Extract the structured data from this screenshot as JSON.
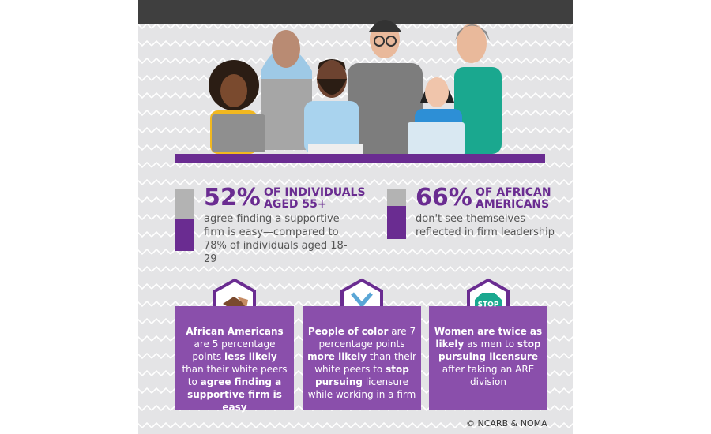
{
  "stats": [
    {
      "value": 52,
      "value_label": "52%",
      "headline": "OF INDIVIDUALS AGED 55+",
      "text": "agree finding a supportive firm is easy—compared to 78% of individuals aged 18-29"
    },
    {
      "value": 66,
      "value_label": "66%",
      "headline": "OF AFRICAN AMERICANS",
      "text": "don't see themselves reflected in firm leadership"
    }
  ],
  "facts": [
    {
      "runs": [
        {
          "text": "African Americans",
          "bold": true
        },
        {
          "text": " are 5 percentage points ",
          "bold": false
        },
        {
          "text": "less likely",
          "bold": true
        },
        {
          "text": " than their white peers to ",
          "bold": false
        },
        {
          "text": "agree finding a supportive firm is easy",
          "bold": true
        }
      ]
    },
    {
      "runs": [
        {
          "text": "People of color",
          "bold": true
        },
        {
          "text": " are 7 percentage points ",
          "bold": false
        },
        {
          "text": "more likely",
          "bold": true
        },
        {
          "text": " than their white peers to ",
          "bold": false
        },
        {
          "text": "stop pursuing",
          "bold": true
        },
        {
          "text": " licensure while working in a firm",
          "bold": false
        }
      ]
    },
    {
      "icon_text": "STOP",
      "runs": [
        {
          "text": "Women are twice as likely",
          "bold": true
        },
        {
          "text": " as men to ",
          "bold": false
        },
        {
          "text": "stop pursuing licensure",
          "bold": true
        },
        {
          "text": " after taking an ARE division",
          "bold": false
        }
      ]
    }
  ],
  "credit": "© NCARB & NOMA"
}
